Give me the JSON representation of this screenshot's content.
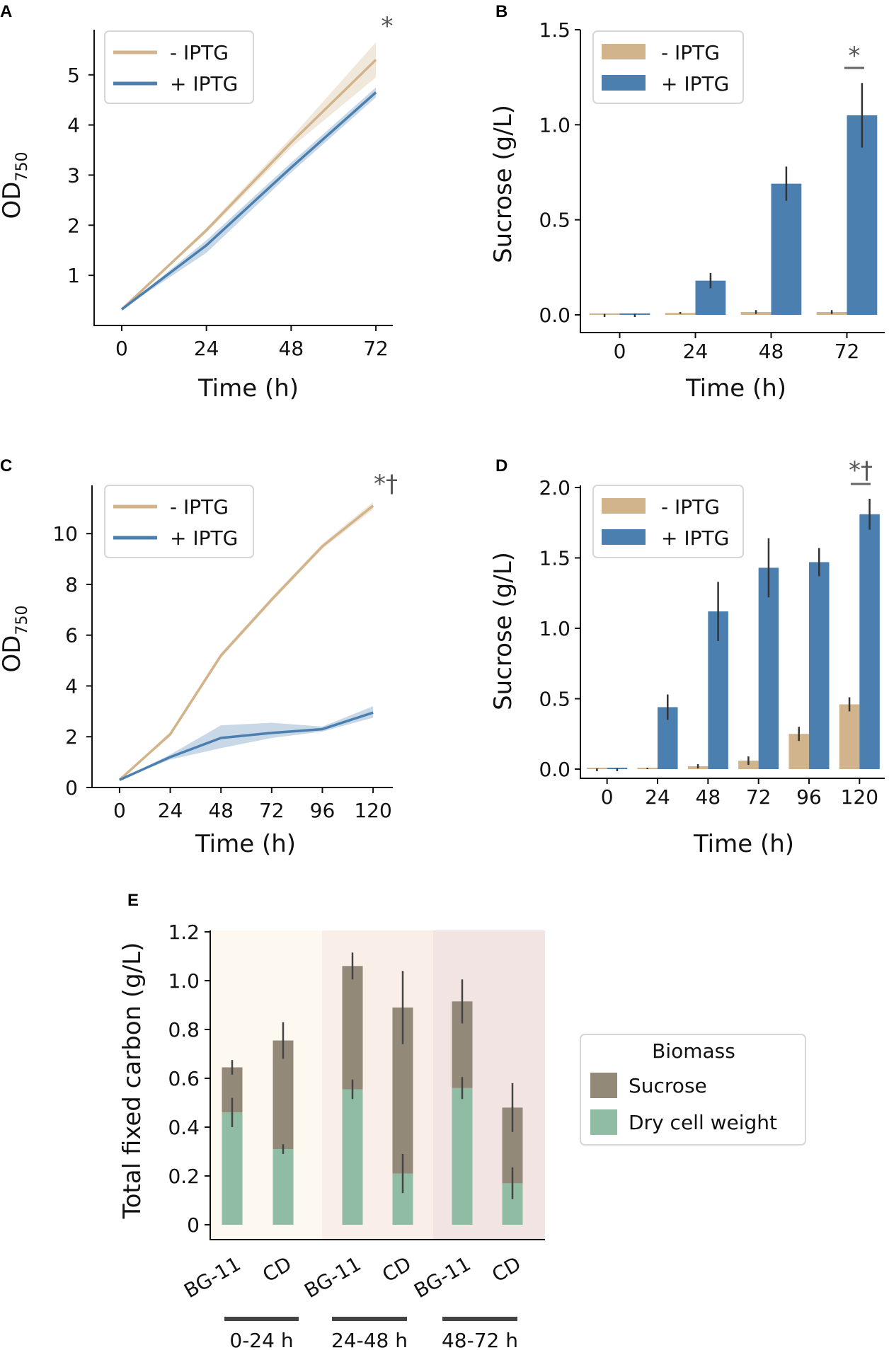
{
  "colors": {
    "minus": "#d2b48c",
    "plus": "#4a7fb0",
    "sucrose": "#938979",
    "dcw": "#8fbca2",
    "bg1": "#fdf9f0",
    "bg2": "#f9efe8",
    "bg3": "#f1e4e2",
    "sig": "#666666"
  },
  "chart_data": [
    {
      "panel": "A",
      "type": "line",
      "x": [
        0,
        24,
        48,
        72
      ],
      "series": [
        {
          "name": "- IPTG",
          "values": [
            0.32,
            1.9,
            3.65,
            5.3
          ],
          "low": [
            0.32,
            1.85,
            3.55,
            4.95
          ],
          "high": [
            0.32,
            1.95,
            3.75,
            5.65
          ]
        },
        {
          "name": "+ IPTG",
          "values": [
            0.32,
            1.6,
            3.15,
            4.65
          ],
          "low": [
            0.32,
            1.45,
            3.05,
            4.55
          ],
          "high": [
            0.32,
            1.7,
            3.25,
            4.75
          ]
        }
      ],
      "xlabel": "Time (h)",
      "ylabel": "OD",
      "ylabel_sub": "750",
      "xticks": [
        "0",
        "24",
        "48",
        "72"
      ],
      "yticks": [
        "1",
        "2",
        "3",
        "4",
        "5"
      ],
      "xlim": [
        -4,
        76
      ],
      "ylim": [
        0,
        5.9
      ],
      "legend": [
        "- IPTG",
        "+ IPTG"
      ],
      "legend_position": "top-left",
      "annotations": [
        "*"
      ]
    },
    {
      "panel": "B",
      "type": "bar",
      "categories": [
        "0",
        "24",
        "48",
        "72"
      ],
      "series": [
        {
          "name": "- IPTG",
          "values": [
            0.0,
            0.01,
            0.015,
            0.015
          ],
          "err": [
            0.005,
            0.005,
            0.01,
            0.01
          ]
        },
        {
          "name": "+ IPTG",
          "values": [
            0.0,
            0.18,
            0.69,
            1.05
          ],
          "err": [
            0.005,
            0.04,
            0.09,
            0.17
          ]
        }
      ],
      "xlabel": "Time (h)",
      "ylabel": "Sucrose (g/L)",
      "yticks": [
        "0.0",
        "0.5",
        "1.0",
        "1.5"
      ],
      "ylim": [
        0,
        1.5
      ],
      "legend": [
        "- IPTG",
        "+ IPTG"
      ],
      "legend_position": "top-left",
      "annotations": [
        "*"
      ]
    },
    {
      "panel": "C",
      "type": "line",
      "x": [
        0,
        24,
        48,
        72,
        96,
        120
      ],
      "series": [
        {
          "name": "- IPTG",
          "values": [
            0.3,
            2.1,
            5.2,
            7.4,
            9.5,
            11.1
          ],
          "low": [
            0.3,
            2.0,
            5.1,
            7.3,
            9.4,
            10.95
          ],
          "high": [
            0.3,
            2.2,
            5.3,
            7.5,
            9.6,
            11.25
          ]
        },
        {
          "name": "+ IPTG",
          "values": [
            0.3,
            1.2,
            1.95,
            2.15,
            2.3,
            2.95
          ],
          "low": [
            0.3,
            1.1,
            1.55,
            1.95,
            2.2,
            2.75
          ],
          "high": [
            0.3,
            1.3,
            2.45,
            2.55,
            2.4,
            3.2
          ]
        }
      ],
      "xlabel": "Time (h)",
      "ylabel": "OD",
      "ylabel_sub": "750",
      "xticks": [
        "0",
        "24",
        "48",
        "72",
        "96",
        "120"
      ],
      "yticks": [
        "0",
        "2",
        "4",
        "6",
        "8",
        "10"
      ],
      "xlim": [
        -6,
        126
      ],
      "ylim": [
        0,
        11.9
      ],
      "legend": [
        "- IPTG",
        "+ IPTG"
      ],
      "legend_position": "top-left",
      "annotations": [
        "*†"
      ]
    },
    {
      "panel": "D",
      "type": "bar",
      "categories": [
        "0",
        "24",
        "48",
        "72",
        "96",
        "120"
      ],
      "series": [
        {
          "name": "- IPTG",
          "values": [
            0.0,
            0.005,
            0.02,
            0.06,
            0.25,
            0.46
          ],
          "err": [
            0.005,
            0.005,
            0.015,
            0.03,
            0.05,
            0.05
          ]
        },
        {
          "name": "+ IPTG",
          "values": [
            0.0,
            0.44,
            1.12,
            1.43,
            1.47,
            1.81
          ],
          "err": [
            0.005,
            0.09,
            0.21,
            0.21,
            0.1,
            0.11
          ]
        }
      ],
      "xlabel": "Time (h)",
      "ylabel": "Sucrose (g/L)",
      "yticks": [
        "0.0",
        "0.5",
        "1.0",
        "1.5",
        "2.0"
      ],
      "ylim": [
        0,
        2.0
      ],
      "legend": [
        "- IPTG",
        "+ IPTG"
      ],
      "legend_position": "top-left",
      "annotations": [
        "*†"
      ]
    },
    {
      "panel": "E",
      "type": "bar",
      "stacked": true,
      "categories": [
        "BG-11",
        "CD",
        "BG-11",
        "CD",
        "BG-11",
        "CD"
      ],
      "groups": [
        "0-24 h",
        "24-48 h",
        "48-72 h"
      ],
      "series": [
        {
          "name": "Dry cell weight",
          "values": [
            0.46,
            0.31,
            0.555,
            0.21,
            0.56,
            0.17
          ],
          "err": [
            0.06,
            0.02,
            0.04,
            0.08,
            0.045,
            0.065
          ]
        },
        {
          "name": "Sucrose",
          "values": [
            0.185,
            0.445,
            0.505,
            0.68,
            0.355,
            0.31
          ],
          "err": [
            0.03,
            0.075,
            0.055,
            0.15,
            0.09,
            0.1
          ]
        }
      ],
      "ylabel": "Total fixed carbon (g/L)",
      "yticks": [
        "0",
        "0.2",
        "0.4",
        "0.6",
        "0.8",
        "1.0",
        "1.2"
      ],
      "ylim": [
        0,
        1.2
      ],
      "legend_title": "Biomass",
      "legend": [
        "Sucrose",
        "Dry cell weight"
      ],
      "legend_position": "right"
    }
  ]
}
